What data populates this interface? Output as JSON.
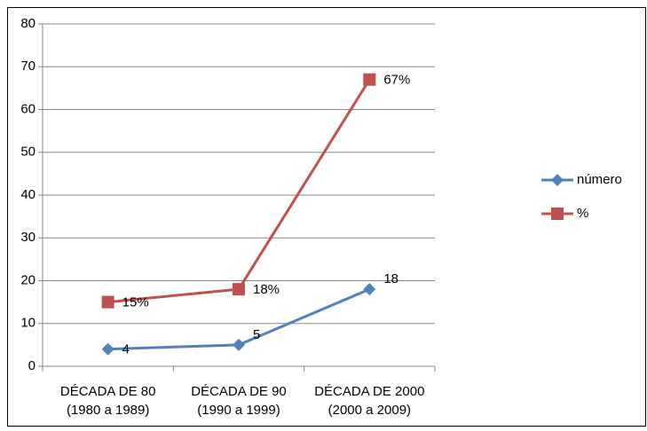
{
  "chart_data": {
    "type": "line",
    "categories": [
      [
        "DÉCADA DE 80",
        "(1980 a 1989)"
      ],
      [
        "DÉCADA DE 90",
        "(1990 a 1999)"
      ],
      [
        "DÉCADA DE 2000",
        "(2000 a 2009)"
      ]
    ],
    "series": [
      {
        "name": "número",
        "color": "#4f81bd",
        "marker": "diamond",
        "values": [
          4,
          5,
          18
        ]
      },
      {
        "name": "%",
        "color": "#c0504d",
        "marker": "square",
        "values": [
          15,
          18,
          67
        ],
        "value_labels": [
          "15%",
          "18%",
          "67%"
        ]
      }
    ],
    "ylim": [
      0,
      80
    ],
    "yticks": [
      0,
      10,
      20,
      30,
      40,
      50,
      60,
      70,
      80
    ],
    "grid": true,
    "legend": "right"
  }
}
